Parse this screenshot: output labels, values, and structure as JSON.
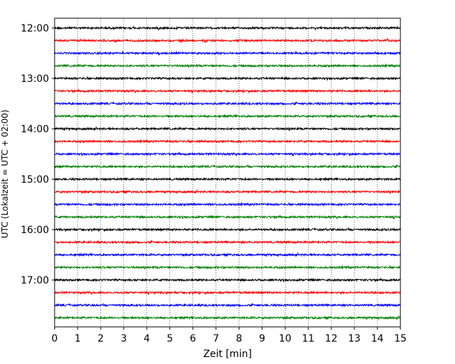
{
  "chart_data": {
    "type": "line",
    "title": "",
    "xlabel": "Zeit  [min]",
    "ylabel": "UTC (Lokalzeit = UTC + 02:00)",
    "xlim": [
      0,
      15
    ],
    "x_ticks": [
      0,
      1,
      2,
      3,
      4,
      5,
      6,
      7,
      8,
      9,
      10,
      11,
      12,
      13,
      14,
      15
    ],
    "x_tick_labels": [
      "0",
      "1",
      "2",
      "3",
      "4",
      "5",
      "6",
      "7",
      "8",
      "9",
      "10",
      "11",
      "12",
      "13",
      "14",
      "15"
    ],
    "y_tick_labels": [
      "12:00",
      "13:00",
      "14:00",
      "15:00",
      "16:00",
      "17:00"
    ],
    "grid": "vertical dotted lines at every minute",
    "trace_interval_minutes": 15,
    "trace_colors": [
      "#000000",
      "#ff0000",
      "#0000ff",
      "#008000"
    ],
    "traces": [
      {
        "start": "12:00"
      },
      {
        "start": "12:15"
      },
      {
        "start": "12:30"
      },
      {
        "start": "12:45"
      },
      {
        "start": "13:00"
      },
      {
        "start": "13:15"
      },
      {
        "start": "13:30"
      },
      {
        "start": "13:45"
      },
      {
        "start": "14:00"
      },
      {
        "start": "14:15"
      },
      {
        "start": "14:30"
      },
      {
        "start": "14:45"
      },
      {
        "start": "15:00"
      },
      {
        "start": "15:15"
      },
      {
        "start": "15:30"
      },
      {
        "start": "15:45"
      },
      {
        "start": "16:00"
      },
      {
        "start": "16:15"
      },
      {
        "start": "16:30"
      },
      {
        "start": "16:45"
      },
      {
        "start": "17:00"
      },
      {
        "start": "17:15"
      },
      {
        "start": "17:30"
      },
      {
        "start": "17:45"
      }
    ]
  }
}
